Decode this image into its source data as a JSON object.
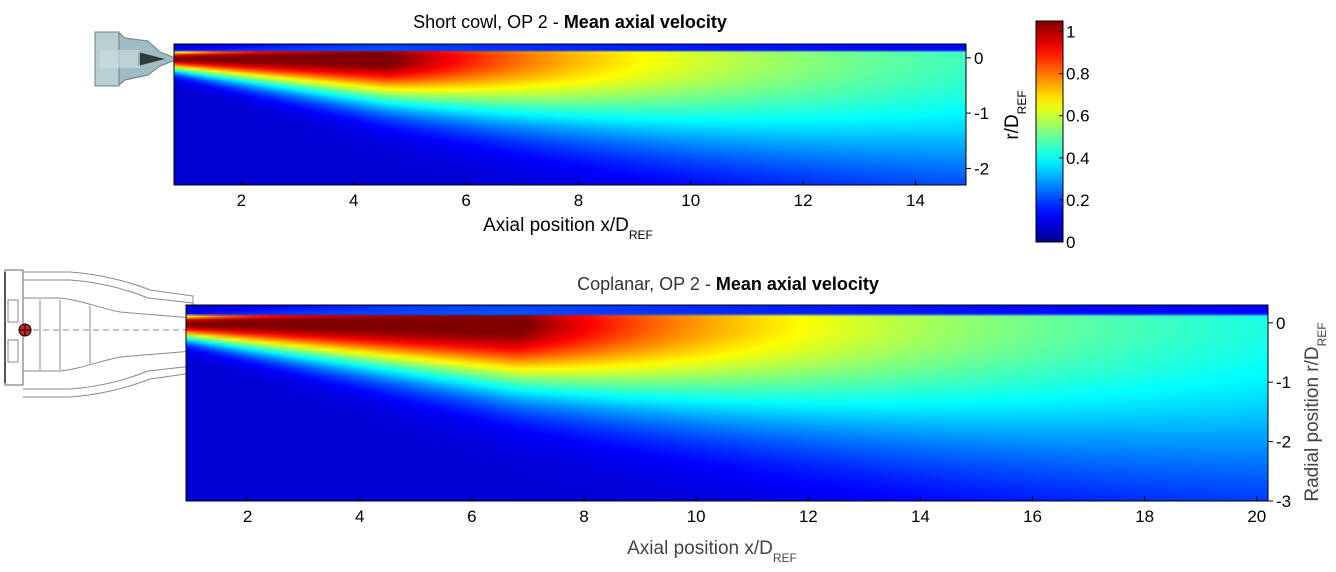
{
  "chart_data": [
    {
      "type": "heatmap",
      "title": "Short cowl, OP 2  -  ",
      "title_bold": "Mean axial velocity",
      "xlabel": "Axial position x/D",
      "xlabel_sub": "REF",
      "ylabel": "r/D",
      "ylabel_sub": "REF",
      "xlim": [
        0.8,
        14.9
      ],
      "ylim": [
        -2.3,
        0.25
      ],
      "xticks": [
        2,
        4,
        6,
        8,
        10,
        12,
        14
      ],
      "yticks": [
        0,
        -1,
        -2
      ],
      "xtick_labels": [
        "2",
        "4",
        "6",
        "8",
        "10",
        "12",
        "14"
      ],
      "ytick_labels": [
        "0",
        "-1",
        "-2"
      ],
      "field": {
        "core_velocity": 1.0,
        "potential_core_end_x": 4.6,
        "centerline_decay": 0.05,
        "spread_rate": 0.085,
        "nozzle_radius": 0.18
      },
      "colorbar": {
        "range": [
          0,
          1.05
        ],
        "ticks": [
          0,
          0.2,
          0.4,
          0.6,
          0.8,
          1
        ],
        "tick_labels": [
          "0",
          "0.2",
          "0.4",
          "0.6",
          "0.8",
          "1"
        ]
      }
    },
    {
      "type": "heatmap",
      "title": "Coplanar, OP 2  -  ",
      "title_bold": "Mean axial velocity",
      "xlabel": "Axial position x/D",
      "xlabel_sub": "REF",
      "ylabel": "Radial position r/D",
      "ylabel_sub": "REF",
      "xlim": [
        0.9,
        20.2
      ],
      "ylim": [
        -3.0,
        0.3
      ],
      "xticks": [
        2,
        4,
        6,
        8,
        10,
        12,
        14,
        16,
        18,
        20
      ],
      "yticks": [
        0,
        -1,
        -2,
        -3
      ],
      "xtick_labels": [
        "2",
        "4",
        "6",
        "8",
        "10",
        "12",
        "14",
        "16",
        "18",
        "20"
      ],
      "ytick_labels": [
        "0",
        "-1",
        "-2",
        "-3"
      ],
      "field": {
        "core_velocity": 1.0,
        "potential_core_end_x": 6.8,
        "centerline_decay": 0.045,
        "spread_rate": 0.08,
        "nozzle_radius": 0.2
      }
    }
  ],
  "colors": {
    "jet": [
      "#00008F",
      "#0000FF",
      "#00FFFF",
      "#FFFF00",
      "#FF0000",
      "#800000"
    ],
    "nozzle_body": "#A9C4C8",
    "nozzle_dark": "#3A4A4C",
    "sketch_line": "#888888",
    "marker_red": "#D02020"
  }
}
